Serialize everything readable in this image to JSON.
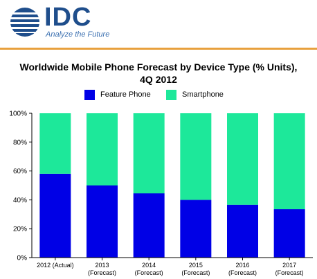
{
  "logo": {
    "brand": "IDC",
    "tagline": "Analyze the Future"
  },
  "colors": {
    "feature_phone": "#0000e6",
    "smartphone": "#1de89a",
    "divider": "#e8a03c",
    "brand": "#1f4e8c"
  },
  "chart_data": {
    "type": "bar",
    "stacked": true,
    "title": "Worldwide Mobile Phone Forecast by Device Type (% Units), 4Q 2012",
    "title_lines": [
      "Worldwide Mobile Phone Forecast by Device Type (% Units),",
      "4Q 2012"
    ],
    "categories": [
      [
        "2012 (Actual)"
      ],
      [
        "2013",
        "(Forecast)"
      ],
      [
        "2014",
        "(Forecast)"
      ],
      [
        "2015",
        "(Forecast)"
      ],
      [
        "2016",
        "(Forecast)"
      ],
      [
        "2017",
        "(Forecast)"
      ]
    ],
    "series": [
      {
        "name": "Feature Phone",
        "values": [
          58,
          50,
          44.5,
          40,
          36.5,
          33.5
        ]
      },
      {
        "name": "Smartphone",
        "values": [
          42,
          50,
          55.5,
          60,
          63.5,
          66.5
        ]
      }
    ],
    "ylim": [
      0,
      100
    ],
    "yticks": [
      "0%",
      "20%",
      "40%",
      "60%",
      "80%",
      "100%"
    ],
    "legend_position": "top",
    "grid": false
  }
}
